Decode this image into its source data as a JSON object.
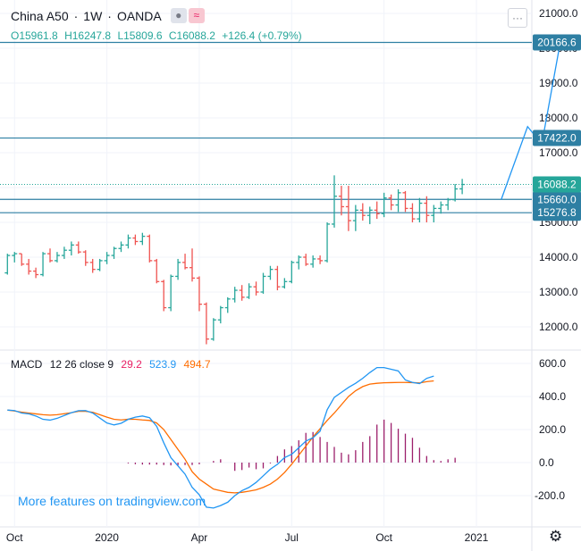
{
  "header": {
    "symbol": "China A50",
    "separator": "·",
    "interval": "1W",
    "broker": "OANDA",
    "icons": [
      "indicator-dot-icon",
      "wave-icon"
    ],
    "more_label": "···"
  },
  "ohlc": {
    "open": "O15961.8",
    "high": "H16247.8",
    "low": "L15809.6",
    "close": "C16088.2",
    "change": "+126.4 (+0.79%)"
  },
  "macd_legend": {
    "name": "MACD",
    "params": "12 26 close 9",
    "hist_value": "29.2",
    "macd_value": "523.9",
    "signal_value": "494.7"
  },
  "watermark": "More features on tradingview.com",
  "colors": {
    "up": "#26a69a",
    "down": "#ef5350",
    "hline": "#2e7fa3",
    "macd_line": "#2196f3",
    "signal_line": "#ff6d00",
    "histogram": "#9c1f6b",
    "projection": "#2196f3",
    "grid": "#f0f3fa"
  },
  "chart_data": [
    {
      "type": "ohlc",
      "title": "China A50 · 1W · OANDA",
      "y_axis_ticks": [
        "12000.0",
        "13000.0",
        "14000.0",
        "15000.0",
        "16000.0",
        "17000.0",
        "18000.0",
        "19000.0",
        "20000.0",
        "21000.0"
      ],
      "ylim": [
        11500,
        21050
      ],
      "x_axis_ticks": [
        {
          "label": "Oct",
          "week": 2
        },
        {
          "label": "2020",
          "week": 15
        },
        {
          "label": "Apr",
          "week": 28
        },
        {
          "label": "Jul",
          "week": 41
        },
        {
          "label": "Oct",
          "week": 54
        },
        {
          "label": "2021",
          "week": 67
        }
      ],
      "grid": true,
      "bars": [
        {
          "o": 13550,
          "h": 14100,
          "l": 13500,
          "c": 14050
        },
        {
          "o": 14050,
          "h": 14150,
          "l": 13850,
          "c": 14100
        },
        {
          "o": 14100,
          "h": 14100,
          "l": 13750,
          "c": 13800
        },
        {
          "o": 13800,
          "h": 13950,
          "l": 13500,
          "c": 13600
        },
        {
          "o": 13600,
          "h": 13700,
          "l": 13400,
          "c": 13500
        },
        {
          "o": 13500,
          "h": 14150,
          "l": 13450,
          "c": 14100
        },
        {
          "o": 14100,
          "h": 14250,
          "l": 13850,
          "c": 13900
        },
        {
          "o": 13900,
          "h": 14150,
          "l": 13850,
          "c": 14050
        },
        {
          "o": 14050,
          "h": 14300,
          "l": 13950,
          "c": 14200
        },
        {
          "o": 14200,
          "h": 14450,
          "l": 14050,
          "c": 14350
        },
        {
          "o": 14350,
          "h": 14450,
          "l": 14100,
          "c": 14150
        },
        {
          "o": 14150,
          "h": 14200,
          "l": 13750,
          "c": 13850
        },
        {
          "o": 13850,
          "h": 13950,
          "l": 13550,
          "c": 13650
        },
        {
          "o": 13650,
          "h": 13950,
          "l": 13600,
          "c": 13900
        },
        {
          "o": 13900,
          "h": 14150,
          "l": 13800,
          "c": 14050
        },
        {
          "o": 14050,
          "h": 14300,
          "l": 13950,
          "c": 14250
        },
        {
          "o": 14250,
          "h": 14450,
          "l": 14150,
          "c": 14350
        },
        {
          "o": 14350,
          "h": 14650,
          "l": 14250,
          "c": 14550
        },
        {
          "o": 14550,
          "h": 14650,
          "l": 14350,
          "c": 14450
        },
        {
          "o": 14450,
          "h": 14700,
          "l": 14350,
          "c": 14600
        },
        {
          "o": 14600,
          "h": 14650,
          "l": 13850,
          "c": 13900
        },
        {
          "o": 13900,
          "h": 13950,
          "l": 13250,
          "c": 13300
        },
        {
          "o": 13300,
          "h": 13350,
          "l": 12450,
          "c": 12550
        },
        {
          "o": 12550,
          "h": 13500,
          "l": 12450,
          "c": 13450
        },
        {
          "o": 13450,
          "h": 13950,
          "l": 13350,
          "c": 13850
        },
        {
          "o": 13850,
          "h": 14100,
          "l": 13650,
          "c": 13700
        },
        {
          "o": 13700,
          "h": 14250,
          "l": 13300,
          "c": 13400
        },
        {
          "o": 13400,
          "h": 13450,
          "l": 12450,
          "c": 12650
        },
        {
          "o": 12650,
          "h": 12700,
          "l": 11500,
          "c": 11650
        },
        {
          "o": 11650,
          "h": 12250,
          "l": 11600,
          "c": 12200
        },
        {
          "o": 12200,
          "h": 12600,
          "l": 12100,
          "c": 12550
        },
        {
          "o": 12550,
          "h": 12850,
          "l": 12400,
          "c": 12800
        },
        {
          "o": 12800,
          "h": 13150,
          "l": 12700,
          "c": 13050
        },
        {
          "o": 13050,
          "h": 13200,
          "l": 12750,
          "c": 12850
        },
        {
          "o": 12850,
          "h": 13250,
          "l": 12800,
          "c": 13150
        },
        {
          "o": 13150,
          "h": 13300,
          "l": 12900,
          "c": 13000
        },
        {
          "o": 13000,
          "h": 13550,
          "l": 12950,
          "c": 13450
        },
        {
          "o": 13450,
          "h": 13750,
          "l": 13350,
          "c": 13650
        },
        {
          "o": 13650,
          "h": 13750,
          "l": 13050,
          "c": 13150
        },
        {
          "o": 13150,
          "h": 13400,
          "l": 13100,
          "c": 13300
        },
        {
          "o": 13300,
          "h": 13900,
          "l": 13250,
          "c": 13850
        },
        {
          "o": 13850,
          "h": 14050,
          "l": 13650,
          "c": 14000
        },
        {
          "o": 14000,
          "h": 14100,
          "l": 13750,
          "c": 13800
        },
        {
          "o": 13800,
          "h": 14050,
          "l": 13700,
          "c": 13950
        },
        {
          "o": 13950,
          "h": 14050,
          "l": 13800,
          "c": 13900
        },
        {
          "o": 13900,
          "h": 15000,
          "l": 13850,
          "c": 14950
        },
        {
          "o": 14950,
          "h": 16350,
          "l": 14850,
          "c": 15750
        },
        {
          "o": 15750,
          "h": 16050,
          "l": 15200,
          "c": 15450
        },
        {
          "o": 15450,
          "h": 16050,
          "l": 14750,
          "c": 15050
        },
        {
          "o": 15050,
          "h": 15500,
          "l": 14750,
          "c": 15350
        },
        {
          "o": 15350,
          "h": 15550,
          "l": 15050,
          "c": 15200
        },
        {
          "o": 15200,
          "h": 15450,
          "l": 14950,
          "c": 15350
        },
        {
          "o": 15350,
          "h": 15600,
          "l": 15100,
          "c": 15250
        },
        {
          "o": 15250,
          "h": 15850,
          "l": 15150,
          "c": 15700
        },
        {
          "o": 15700,
          "h": 15800,
          "l": 15350,
          "c": 15500
        },
        {
          "o": 15500,
          "h": 15950,
          "l": 15300,
          "c": 15850
        },
        {
          "o": 15850,
          "h": 15900,
          "l": 15300,
          "c": 15400
        },
        {
          "o": 15400,
          "h": 15550,
          "l": 15000,
          "c": 15100
        },
        {
          "o": 15100,
          "h": 15700,
          "l": 15000,
          "c": 15550
        },
        {
          "o": 15550,
          "h": 15750,
          "l": 15000,
          "c": 15200
        },
        {
          "o": 15200,
          "h": 15500,
          "l": 15000,
          "c": 15400
        },
        {
          "o": 15400,
          "h": 15600,
          "l": 15250,
          "c": 15500
        },
        {
          "o": 15500,
          "h": 15700,
          "l": 15350,
          "c": 15650
        },
        {
          "o": 15650,
          "h": 16100,
          "l": 15600,
          "c": 15960
        },
        {
          "o": 15961.8,
          "h": 16247.8,
          "l": 15809.6,
          "c": 16088.2
        }
      ],
      "horizontal_levels": [
        {
          "value": 20166.6,
          "label": "20166.6"
        },
        {
          "value": 17422.0,
          "label": "17422.0"
        },
        {
          "value": 15660.0,
          "label": "15660.0"
        },
        {
          "value": 15276.8,
          "label": "15276.8"
        }
      ],
      "last_price": {
        "value": 16088.2,
        "label": "16088.2"
      },
      "projection_path": [
        {
          "week": 70.5,
          "value": 15660
        },
        {
          "week": 74.2,
          "value": 17750
        },
        {
          "week": 76.2,
          "value": 17250
        },
        {
          "week": 78.8,
          "value": 20166.6
        }
      ]
    },
    {
      "type": "macd",
      "title": "MACD 12 26 close 9",
      "y_axis_ticks": [
        "-200.0",
        "0.0",
        "200.0",
        "400.0",
        "600.0"
      ],
      "ylim": [
        -310,
        640
      ],
      "x_start_week": 1,
      "macd": [
        318,
        315,
        300,
        295,
        282,
        262,
        257,
        268,
        285,
        302,
        314,
        315,
        300,
        270,
        240,
        228,
        238,
        262,
        275,
        282,
        272,
        220,
        120,
        30,
        -20,
        -70,
        -150,
        -195,
        -270,
        -275,
        -260,
        -240,
        -200,
        -170,
        -150,
        -120,
        -80,
        -40,
        -10,
        30,
        50,
        90,
        130,
        150,
        190,
        320,
        395,
        425,
        455,
        480,
        510,
        545,
        575,
        575,
        565,
        555,
        500,
        485,
        478,
        510,
        523.9
      ],
      "signal": [
        318,
        312,
        305,
        300,
        295,
        290,
        287,
        290,
        296,
        302,
        310,
        310,
        305,
        290,
        275,
        262,
        258,
        263,
        262,
        258,
        255,
        240,
        200,
        140,
        80,
        20,
        -55,
        -100,
        -130,
        -160,
        -170,
        -180,
        -183,
        -180,
        -173,
        -165,
        -150,
        -130,
        -100,
        -60,
        -10,
        45,
        100,
        155,
        205,
        255,
        300,
        350,
        400,
        435,
        460,
        475,
        480,
        483,
        484,
        485,
        485,
        484,
        482,
        490,
        494.7
      ],
      "histogram": [
        -5,
        -10,
        -12,
        -12,
        -12,
        -15,
        -17,
        -16,
        -15,
        -15,
        -10,
        0,
        10,
        20,
        0,
        -50,
        -45,
        -30,
        -40,
        -35,
        -5,
        40,
        80,
        100,
        135,
        180,
        185,
        155,
        125,
        95,
        60,
        50,
        75,
        125,
        160,
        230,
        260,
        240,
        205,
        175,
        150,
        90,
        40,
        15,
        10,
        20,
        29.2
      ],
      "histogram_start_week": 18,
      "grid": true
    }
  ]
}
